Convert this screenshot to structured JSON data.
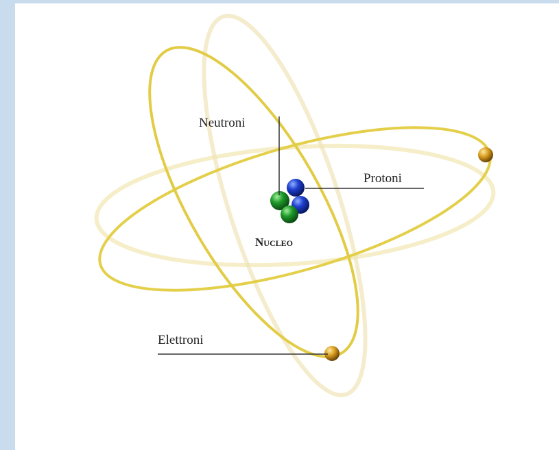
{
  "labels": {
    "neutrons": "Neutroni",
    "protons": "Protoni",
    "nucleus": "Nucleo",
    "electrons": "Elettroni"
  }
}
